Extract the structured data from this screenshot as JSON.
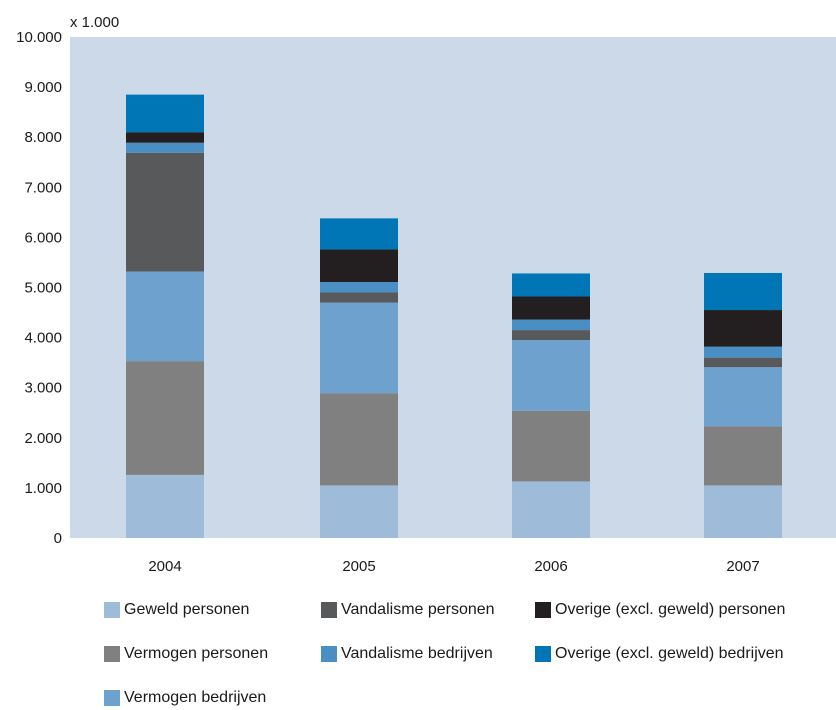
{
  "chart_data": {
    "type": "bar",
    "stacked": true,
    "unit_label": "x 1.000",
    "categories": [
      "2004",
      "2005",
      "2006",
      "2007"
    ],
    "ylim": [
      0,
      10000
    ],
    "yticks": [
      0,
      1000,
      2000,
      3000,
      4000,
      5000,
      6000,
      7000,
      8000,
      9000,
      10000
    ],
    "ytick_labels": [
      "0",
      "1.000",
      "2.000",
      "3.000",
      "4.000",
      "5.000",
      "6.000",
      "7.000",
      "8.000",
      "9.000",
      "10.000"
    ],
    "grid": false,
    "legend_position": "bottom",
    "series": [
      {
        "name": "Geweld personen",
        "color": "#9ebbd9",
        "values": [
          1260,
          1050,
          1130,
          1050
        ]
      },
      {
        "name": "Vermogen personen",
        "color": "#808080",
        "values": [
          2270,
          1840,
          1410,
          1180
        ]
      },
      {
        "name": "Vermogen bedrijven",
        "color": "#6fa1cf",
        "values": [
          1790,
          1810,
          1410,
          1180
        ]
      },
      {
        "name": "Vandalisme personen",
        "color": "#58595b",
        "values": [
          2370,
          200,
          200,
          190
        ]
      },
      {
        "name": "Vandalisme bedrijven",
        "color": "#4a8fc4",
        "values": [
          200,
          210,
          210,
          220
        ]
      },
      {
        "name": "Overige (excl. geweld) personen",
        "color": "#231f20",
        "values": [
          210,
          650,
          460,
          730
        ]
      },
      {
        "name": "Overige (excl. geweld) bedrijven",
        "color": "#0076b6",
        "values": [
          750,
          620,
          460,
          740
        ]
      }
    ]
  },
  "legend_order": [
    "Geweld personen",
    "Vandalisme personen",
    "Overige (excl. geweld) personen",
    "Vermogen personen",
    "Vandalisme bedrijven",
    "Overige (excl. geweld) bedrijven",
    "Vermogen bedrijven"
  ],
  "colors": {
    "plot_background": "#ccd9e8",
    "axis_text": "#1a1a1a"
  }
}
